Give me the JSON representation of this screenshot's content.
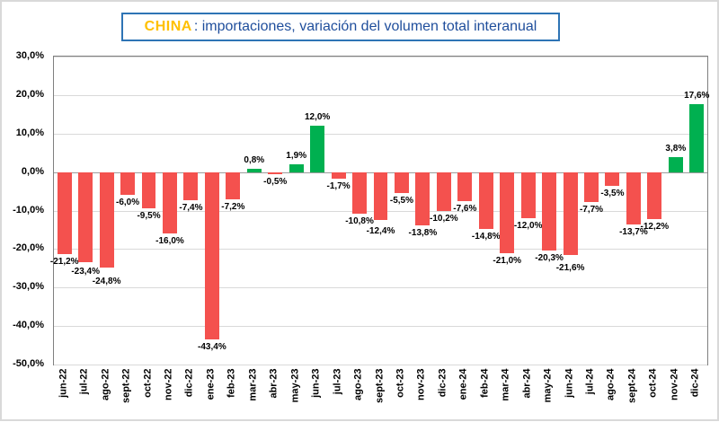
{
  "title": {
    "brand": "CHINA",
    "rest": ": importaciones, variación del volumen total interanual",
    "brand_color": "#ffc000",
    "rest_color": "#1f4e9c",
    "border_color": "#2e74b5"
  },
  "chart_data": {
    "type": "bar",
    "title": "CHINA: importaciones, variación del volumen total interanual",
    "categories": [
      "jun-22",
      "jul-22",
      "ago-22",
      "sept-22",
      "oct-22",
      "nov-22",
      "dic-22",
      "ene-23",
      "feb-23",
      "mar-23",
      "abr-23",
      "may-23",
      "jun-23",
      "jul-23",
      "ago-23",
      "sept-23",
      "oct-23",
      "nov-23",
      "dic-23",
      "ene-24",
      "feb-24",
      "mar-24",
      "abr-24",
      "may-24",
      "jun-24",
      "jul-24",
      "ago-24",
      "sept-24",
      "oct-24",
      "nov-24",
      "dic-24"
    ],
    "values": [
      -21.2,
      -23.4,
      -24.8,
      -6.0,
      -9.5,
      -16.0,
      -7.4,
      -43.4,
      -7.2,
      0.8,
      -0.5,
      1.9,
      12.0,
      -1.7,
      -10.8,
      -12.4,
      -5.5,
      -13.8,
      -10.2,
      -7.6,
      -14.8,
      -21.0,
      -12.0,
      -20.3,
      -21.6,
      -7.7,
      -3.5,
      -13.7,
      -12.2,
      3.8,
      17.6
    ],
    "labels": [
      "-21,2%",
      "-23,4%",
      "-24,8%",
      "-6,0%",
      "-9,5%",
      "-16,0%",
      "-7,4%",
      "-43,4%",
      "-7,2%",
      "0,8%",
      "-0,5%",
      "1,9%",
      "12,0%",
      "-1,7%",
      "-10,8%",
      "-12,4%",
      "-5,5%",
      "-13,8%",
      "-10,2%",
      "-7,6%",
      "-14,8%",
      "-21,0%",
      "-12,0%",
      "-20,3%",
      "-21,6%",
      "-7,7%",
      "-3,5%",
      "-13,7%",
      "-12,2%",
      "3,8%",
      "17,6%"
    ],
    "ylim": [
      -50,
      30
    ],
    "yticks": [
      {
        "value": 30,
        "label": "30,0%"
      },
      {
        "value": 20,
        "label": "20,0%"
      },
      {
        "value": 10,
        "label": "10,0%"
      },
      {
        "value": 0,
        "label": "0,0%"
      },
      {
        "value": -10,
        "label": "-10,0%"
      },
      {
        "value": -20,
        "label": "-20,0%"
      },
      {
        "value": -30,
        "label": "-30,0%"
      },
      {
        "value": -40,
        "label": "-40,0%"
      },
      {
        "value": -50,
        "label": "-50,0%"
      }
    ],
    "xlabel": "",
    "ylabel": "",
    "grid": true,
    "legend": "none",
    "colors": {
      "positive": "#00b050",
      "negative": "#f4514e"
    }
  }
}
